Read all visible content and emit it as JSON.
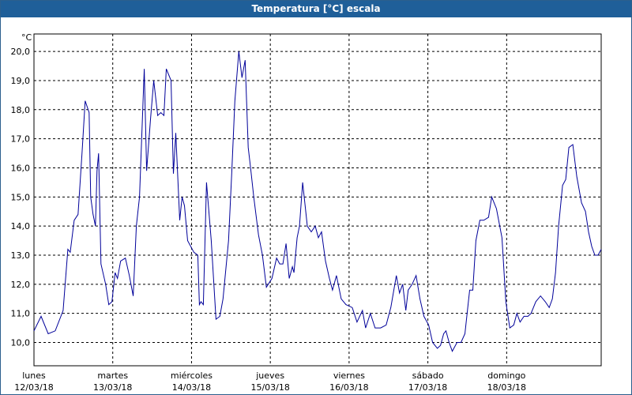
{
  "window": {
    "title": "Temperatura [°C] escala"
  },
  "chart_data": {
    "type": "line",
    "title": "Temperatura [°C] escala",
    "ylabel": "°C",
    "ylim": [
      9.2,
      20.6
    ],
    "yticks": [
      10.0,
      11.0,
      12.0,
      13.0,
      14.0,
      15.0,
      16.0,
      17.0,
      18.0,
      19.0,
      20.0
    ],
    "ytick_labels": [
      "10,0",
      "11,0",
      "12,0",
      "13,0",
      "14,0",
      "15,0",
      "16,0",
      "17,0",
      "18,0",
      "19,0",
      "20,0"
    ],
    "grid": true,
    "color": "#000099",
    "x_range_days": [
      0,
      7.2
    ],
    "day_ticks": [
      {
        "day": "lunes",
        "date": "12/03/18"
      },
      {
        "day": "martes",
        "date": "13/03/18"
      },
      {
        "day": "miércoles",
        "date": "14/03/18"
      },
      {
        "day": "jueves",
        "date": "15/03/18"
      },
      {
        "day": "viernes",
        "date": "16/03/18"
      },
      {
        "day": "sábado",
        "date": "17/03/18"
      },
      {
        "day": "domingo",
        "date": "18/03/18"
      }
    ],
    "series": [
      {
        "x": [
          0,
          0.09,
          0.18,
          0.27,
          0.37,
          0.43,
          0.46,
          0.51,
          0.56,
          0.61,
          0.65,
          0.7,
          0.72,
          0.75,
          0.78,
          0.8,
          0.82,
          0.85,
          0.91,
          0.95,
          0.99,
          1.03,
          1.06,
          1.1,
          1.16,
          1.21,
          1.26,
          1.3,
          1.34,
          1.4,
          1.43,
          1.48,
          1.52,
          1.57,
          1.61,
          1.65,
          1.68,
          1.74,
          1.77,
          1.8,
          1.85,
          1.88,
          1.91,
          1.95,
          2.03,
          2.08,
          2.1,
          2.12,
          2.15,
          2.19,
          2.25,
          2.31,
          2.36,
          2.4,
          2.47,
          2.51,
          2.55,
          2.6,
          2.64,
          2.68,
          2.72,
          2.75,
          2.79,
          2.85,
          2.9,
          2.95,
          3.02,
          3.08,
          3.12,
          3.16,
          3.2,
          3.24,
          3.28,
          3.3,
          3.34,
          3.37,
          3.41,
          3.47,
          3.52,
          3.57,
          3.61,
          3.65,
          3.7,
          3.75,
          3.79,
          3.84,
          3.9,
          3.96,
          4.04,
          4.1,
          4.17,
          4.21,
          4.27,
          4.33,
          4.4,
          4.47,
          4.53,
          4.6,
          4.64,
          4.68,
          4.72,
          4.75,
          4.8,
          4.85,
          4.9,
          4.95,
          5.01,
          5.06,
          5.12,
          5.16,
          5.2,
          5.23,
          5.27,
          5.31,
          5.37,
          5.42,
          5.47,
          5.53,
          5.57,
          5.61,
          5.66,
          5.71,
          5.77,
          5.81,
          5.87,
          5.94,
          5.99,
          6.04,
          6.09,
          6.13,
          6.17,
          6.22,
          6.27,
          6.31,
          6.37,
          6.43,
          6.49,
          6.54,
          6.58,
          6.62,
          6.66,
          6.71,
          6.75,
          6.79,
          6.84,
          6.89,
          6.95,
          7.0,
          7.04,
          7.08,
          7.12,
          7.16,
          7.2
        ],
        "y": [
          10.4,
          10.9,
          10.3,
          10.4,
          11.1,
          13.2,
          13.1,
          14.2,
          14.4,
          16.5,
          18.3,
          17.9,
          15.0,
          14.4,
          14.0,
          15.9,
          16.5,
          12.7,
          12.0,
          11.3,
          11.4,
          12.4,
          12.2,
          12.8,
          12.9,
          12.3,
          11.6,
          14.0,
          15.0,
          19.4,
          15.9,
          17.7,
          19.0,
          17.8,
          17.9,
          17.8,
          19.4,
          19.0,
          15.8,
          17.2,
          14.2,
          15.0,
          14.7,
          13.5,
          13.1,
          13.0,
          11.3,
          11.4,
          11.3,
          15.5,
          13.5,
          10.8,
          10.9,
          11.5,
          13.5,
          15.8,
          18.3,
          20.0,
          19.1,
          19.7,
          16.7,
          16.0,
          15.0,
          13.7,
          13.0,
          11.9,
          12.2,
          12.9,
          12.7,
          12.7,
          13.4,
          12.2,
          12.6,
          12.4,
          13.6,
          14.0,
          15.5,
          14.0,
          13.8,
          14.0,
          13.6,
          13.8,
          12.8,
          12.2,
          11.8,
          12.3,
          11.5,
          11.3,
          11.2,
          10.7,
          11.1,
          10.5,
          11.0,
          10.5,
          10.5,
          10.6,
          11.2,
          12.3,
          11.7,
          12.0,
          11.1,
          11.8,
          12.0,
          12.3,
          11.5,
          10.9,
          10.6,
          10.0,
          9.8,
          9.9,
          10.3,
          10.4,
          10.0,
          9.7,
          10.0,
          10.0,
          10.3,
          11.8,
          11.8,
          13.5,
          14.2,
          14.2,
          14.3,
          15.0,
          14.6,
          13.6,
          11.4,
          10.5,
          10.6,
          11.0,
          10.7,
          10.9,
          10.9,
          11.0,
          11.4,
          11.6,
          11.4,
          11.2,
          11.5,
          12.4,
          14.0,
          15.4,
          15.6,
          16.7,
          16.8,
          15.7,
          14.8,
          14.5,
          13.8,
          13.3,
          13.0,
          13.0,
          13.2
        ]
      }
    ]
  }
}
